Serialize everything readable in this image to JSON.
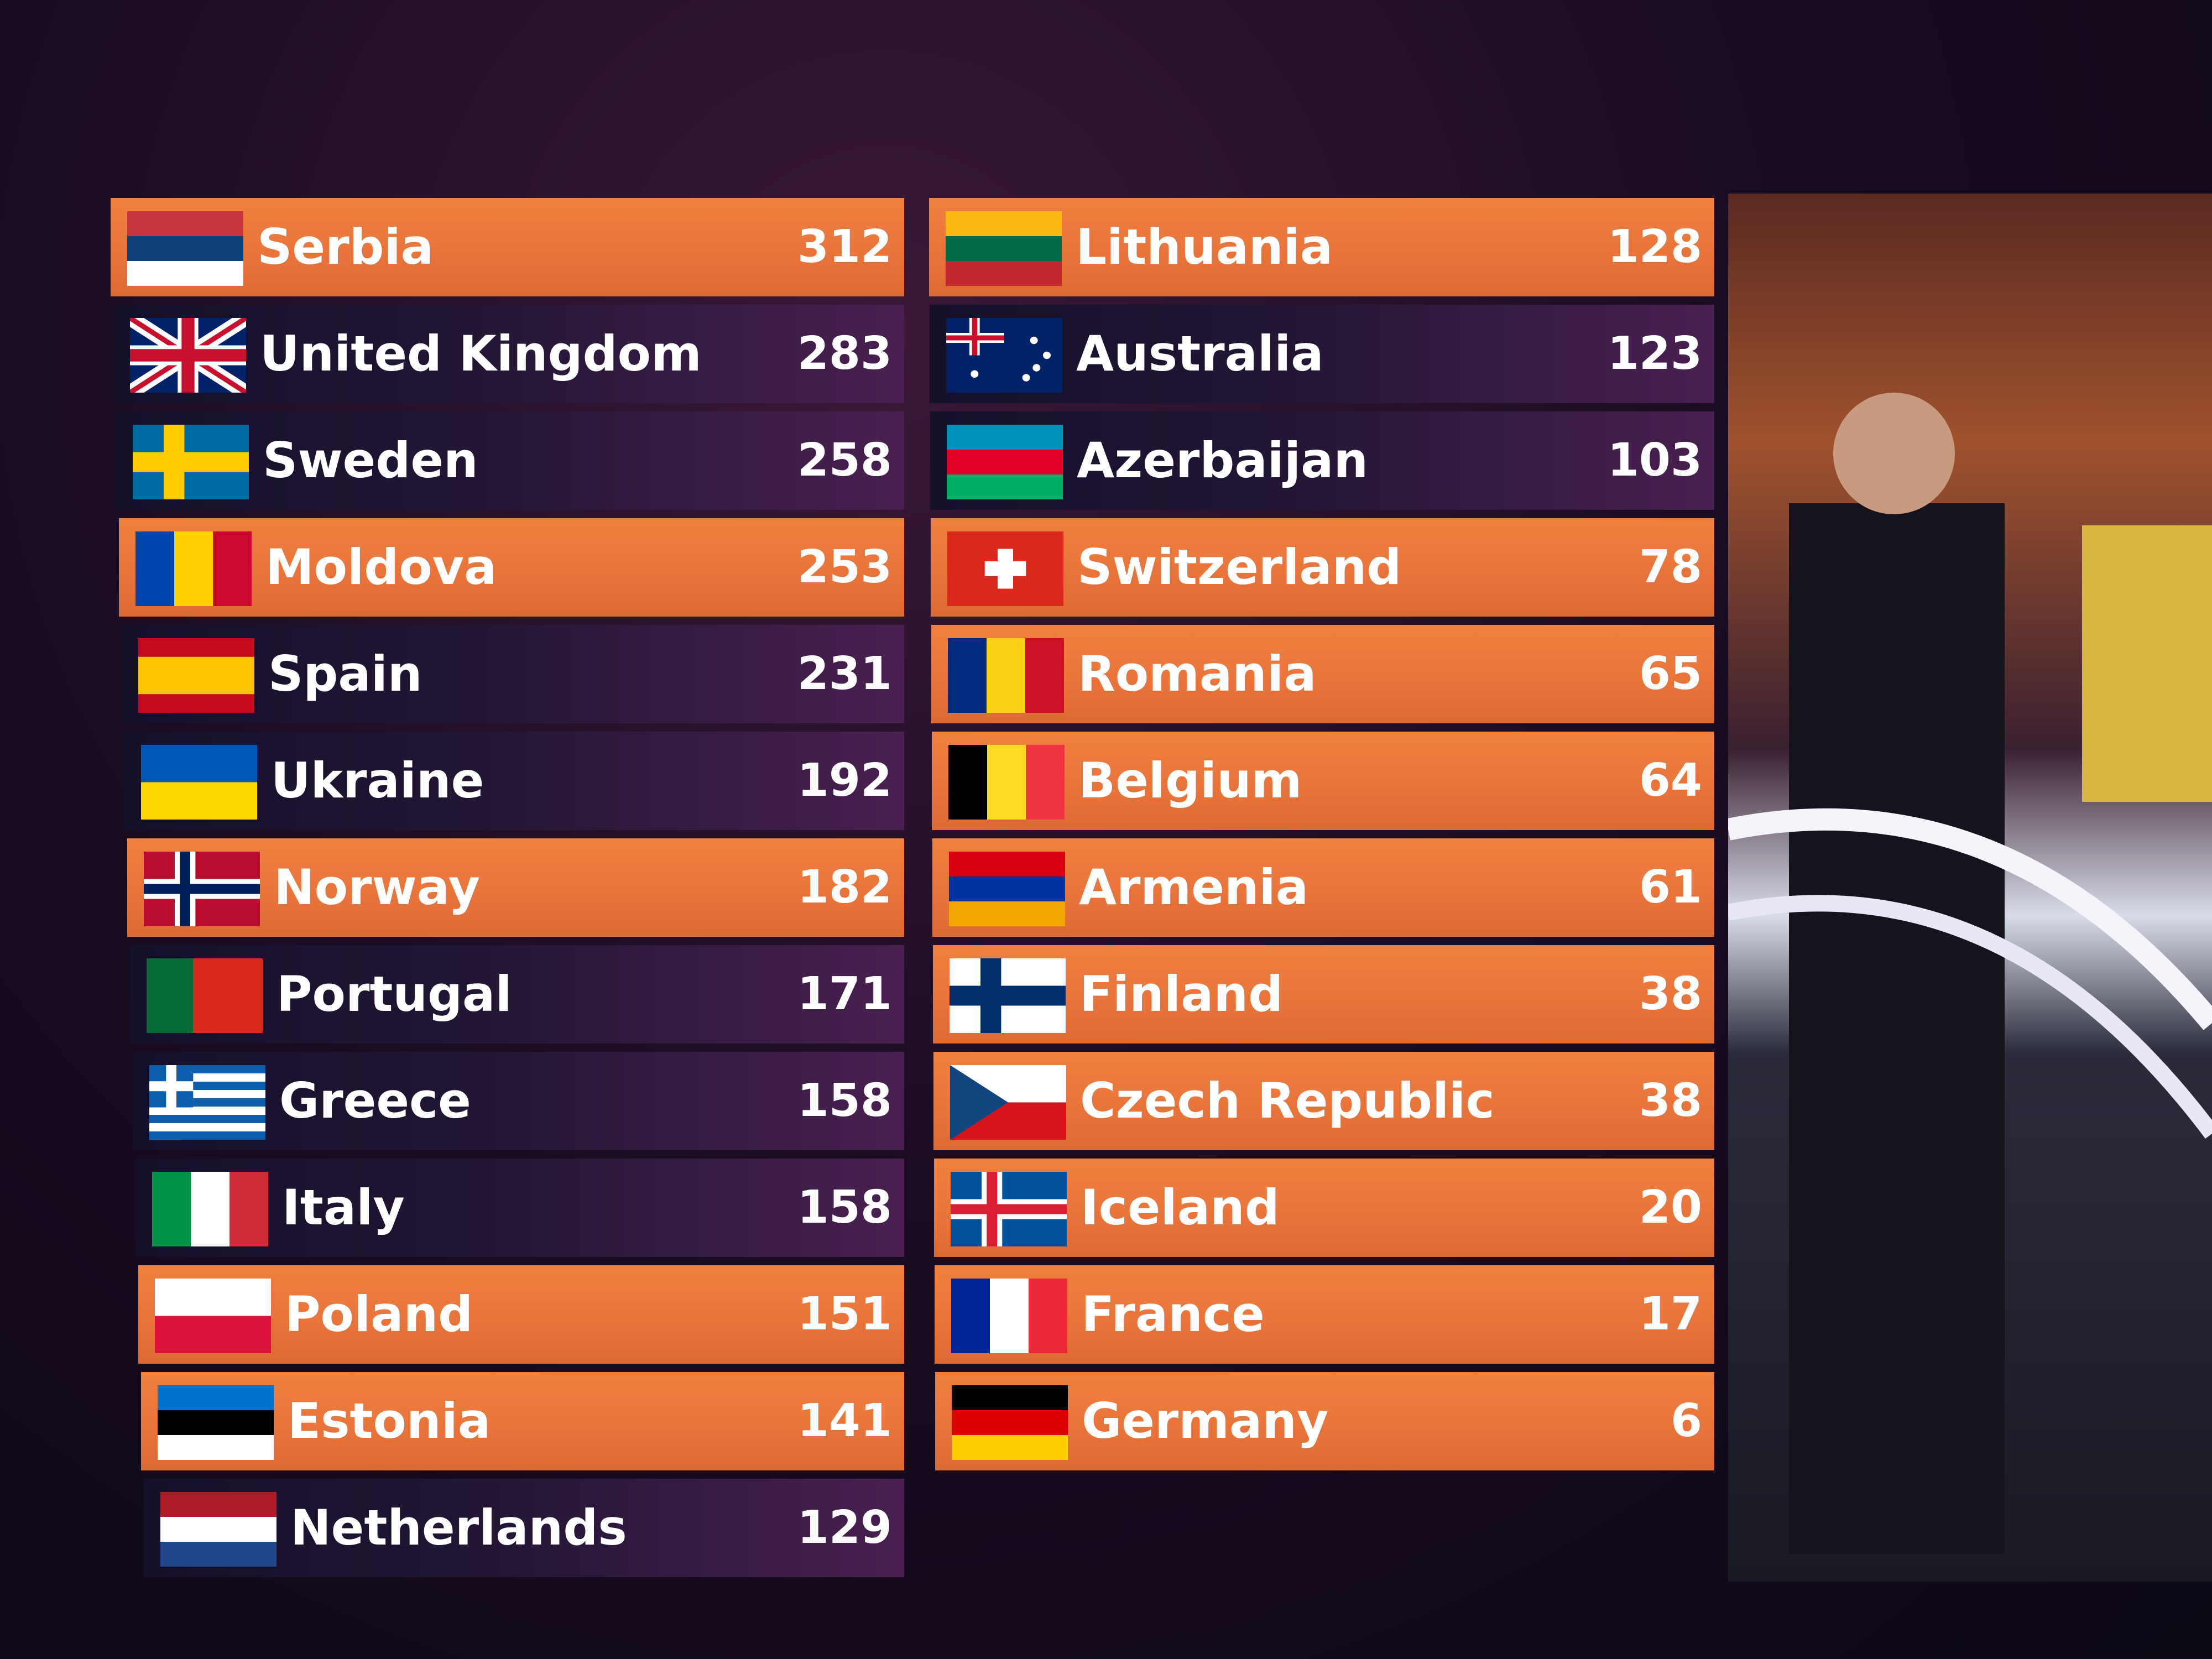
{
  "scoreboard": {
    "left": [
      {
        "country": "Serbia",
        "points": 312,
        "highlighted": true
      },
      {
        "country": "United Kingdom",
        "points": 283,
        "highlighted": false
      },
      {
        "country": "Sweden",
        "points": 258,
        "highlighted": false
      },
      {
        "country": "Moldova",
        "points": 253,
        "highlighted": true
      },
      {
        "country": "Spain",
        "points": 231,
        "highlighted": false
      },
      {
        "country": "Ukraine",
        "points": 192,
        "highlighted": false
      },
      {
        "country": "Norway",
        "points": 182,
        "highlighted": true
      },
      {
        "country": "Portugal",
        "points": 171,
        "highlighted": false
      },
      {
        "country": "Greece",
        "points": 158,
        "highlighted": false
      },
      {
        "country": "Italy",
        "points": 158,
        "highlighted": false
      },
      {
        "country": "Poland",
        "points": 151,
        "highlighted": true
      },
      {
        "country": "Estonia",
        "points": 141,
        "highlighted": true
      },
      {
        "country": "Netherlands",
        "points": 129,
        "highlighted": false
      }
    ],
    "right": [
      {
        "country": "Lithuania",
        "points": 128,
        "highlighted": true
      },
      {
        "country": "Australia",
        "points": 123,
        "highlighted": false
      },
      {
        "country": "Azerbaijan",
        "points": 103,
        "highlighted": false
      },
      {
        "country": "Switzerland",
        "points": 78,
        "highlighted": true
      },
      {
        "country": "Romania",
        "points": 65,
        "highlighted": true
      },
      {
        "country": "Belgium",
        "points": 64,
        "highlighted": true
      },
      {
        "country": "Armenia",
        "points": 61,
        "highlighted": true
      },
      {
        "country": "Finland",
        "points": 38,
        "highlighted": true
      },
      {
        "country": "Czech Republic",
        "points": 38,
        "highlighted": true
      },
      {
        "country": "Iceland",
        "points": 20,
        "highlighted": true
      },
      {
        "country": "France",
        "points": 17,
        "highlighted": true
      },
      {
        "country": "Germany",
        "points": 6,
        "highlighted": true
      }
    ]
  }
}
